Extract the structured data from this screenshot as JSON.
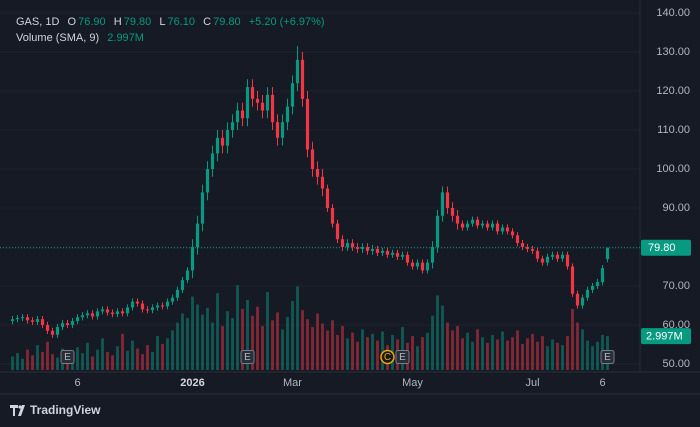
{
  "chart_data": {
    "type": "candlestick",
    "legend": {
      "symbol": "GAS, 1D",
      "o_label": "O",
      "open": "76.90",
      "h_label": "H",
      "high": "79.80",
      "l_label": "L",
      "low": "76.10",
      "c_label": "C",
      "close": "79.80",
      "change": "+5.20 (+6.97%)",
      "volume_label": "Volume (SMA, 9)",
      "volume": "2.997M"
    },
    "categories": [
      null,
      null,
      null,
      null,
      null,
      null,
      null,
      null,
      null,
      null,
      null,
      null,
      null,
      "6",
      null,
      null,
      null,
      null,
      null,
      null,
      null,
      null,
      null,
      null,
      null,
      null,
      null,
      null,
      null,
      null,
      null,
      null,
      null,
      null,
      null,
      null,
      "2026",
      null,
      null,
      null,
      null,
      null,
      null,
      null,
      null,
      null,
      null,
      null,
      null,
      null,
      null,
      null,
      null,
      null,
      null,
      null,
      "Mar",
      null,
      null,
      null,
      null,
      null,
      null,
      null,
      null,
      null,
      null,
      null,
      null,
      null,
      null,
      null,
      null,
      null,
      null,
      null,
      null,
      null,
      null,
      null,
      "May",
      null,
      null,
      null,
      null,
      null,
      null,
      null,
      null,
      null,
      null,
      null,
      null,
      null,
      null,
      null,
      null,
      null,
      null,
      null,
      null,
      null,
      null,
      null,
      "Jul",
      null,
      null,
      null,
      null,
      null,
      null,
      null,
      null,
      null,
      null,
      null,
      null,
      null,
      "6",
      null
    ],
    "events": [
      null,
      null,
      null,
      null,
      null,
      null,
      null,
      null,
      null,
      null,
      null,
      "E",
      null,
      null,
      null,
      null,
      null,
      null,
      null,
      null,
      null,
      null,
      null,
      null,
      null,
      null,
      null,
      null,
      null,
      null,
      null,
      null,
      null,
      null,
      null,
      null,
      null,
      null,
      null,
      null,
      null,
      null,
      null,
      null,
      null,
      null,
      null,
      "E",
      null,
      null,
      null,
      null,
      null,
      null,
      null,
      null,
      null,
      null,
      null,
      null,
      null,
      null,
      null,
      null,
      null,
      null,
      null,
      null,
      null,
      null,
      null,
      null,
      null,
      null,
      null,
      "C",
      null,
      null,
      "E",
      null,
      null,
      null,
      null,
      null,
      null,
      null,
      null,
      null,
      null,
      null,
      null,
      null,
      null,
      null,
      null,
      null,
      null,
      null,
      null,
      null,
      null,
      null,
      null,
      null,
      null,
      null,
      null,
      null,
      null,
      null,
      null,
      null,
      null,
      null,
      null,
      null,
      null,
      null,
      null,
      "E",
      null,
      null,
      null
    ],
    "open": [
      61,
      61.5,
      61.8,
      62,
      61.2,
      60.8,
      61.5,
      60,
      58.5,
      57.5,
      59.5,
      60.5,
      60,
      61,
      62,
      62.5,
      63,
      62.2,
      63.5,
      64,
      63.2,
      62.8,
      63.5,
      63,
      64.5,
      66,
      65.5,
      64,
      63.8,
      64.5,
      65,
      64.8,
      66,
      67,
      69,
      71.5,
      74,
      80,
      86,
      94,
      100,
      104,
      108,
      106,
      110,
      112,
      115,
      113,
      121,
      118,
      117,
      115,
      119,
      112,
      108,
      112,
      116,
      122,
      128,
      118,
      105,
      100,
      98,
      95,
      90,
      86,
      82,
      80,
      81,
      80,
      79.5,
      80,
      79,
      79.5,
      78.5,
      79,
      78,
      78.5,
      77.5,
      78,
      76,
      75,
      76,
      74,
      76,
      80,
      88,
      94,
      90,
      88,
      86,
      85,
      86,
      87,
      85.5,
      86,
      85,
      86,
      84,
      85,
      84,
      83,
      81,
      80,
      79.5,
      79,
      77,
      76,
      77.5,
      78,
      77,
      78,
      75,
      68,
      65,
      67,
      69,
      70,
      71,
      76.9
    ],
    "high": [
      62.3,
      62.6,
      62.8,
      62.8,
      62,
      62.3,
      62.3,
      60.8,
      59.3,
      60.3,
      61.3,
      61.3,
      61.8,
      62.8,
      63.3,
      63.8,
      63.8,
      64.3,
      64.8,
      64.8,
      64,
      64.3,
      64.3,
      65.3,
      66.8,
      66.8,
      66.3,
      64.8,
      65.3,
      65.8,
      65.8,
      66.8,
      67.8,
      69.8,
      72.3,
      74.8,
      82,
      88,
      96,
      102,
      106,
      110,
      110,
      112,
      114,
      117,
      117,
      123,
      123,
      120,
      119,
      121,
      121,
      114,
      114,
      118,
      124,
      131.5,
      130,
      120,
      107,
      102,
      100,
      96,
      91,
      87,
      83,
      82,
      82,
      81,
      81,
      81,
      80.5,
      80.3,
      79.8,
      79.8,
      79.3,
      79.3,
      78.8,
      78.8,
      76.8,
      76.8,
      76.8,
      76.8,
      81.5,
      89.5,
      95.5,
      95.5,
      91.5,
      89.5,
      86.8,
      86.8,
      87.8,
      87.8,
      86.8,
      86.8,
      86.8,
      86.8,
      85.8,
      85.8,
      84.8,
      83.8,
      81.8,
      80.8,
      80.3,
      79.8,
      77.8,
      78.3,
      78.8,
      78.8,
      78.8,
      78.8,
      75.8,
      68.8,
      67.8,
      69.8,
      70.8,
      71.8,
      75.4,
      79.8
    ],
    "low": [
      60.2,
      60.7,
      61,
      60.4,
      60,
      60,
      59.2,
      57.7,
      56.7,
      56.7,
      58.7,
      59.2,
      59.2,
      60.2,
      61.2,
      61.7,
      61.4,
      61.4,
      62.7,
      62.4,
      62,
      62,
      62.2,
      62.2,
      63.7,
      64.7,
      63.2,
      63,
      63,
      63.7,
      64,
      64,
      65.2,
      66.2,
      68.2,
      70.7,
      72,
      78,
      84,
      92,
      98,
      102,
      104,
      104,
      108,
      110,
      111,
      111,
      116,
      115,
      113,
      113,
      110,
      106,
      106,
      110,
      114,
      120,
      116,
      103,
      98,
      96,
      93,
      89,
      85,
      81,
      79,
      79,
      79,
      78.5,
      78.5,
      78,
      78,
      77.7,
      77.7,
      77.2,
      77.2,
      76.7,
      76.7,
      75.2,
      74.2,
      74.2,
      73.2,
      73.2,
      74.5,
      78.5,
      86.5,
      88.5,
      86.5,
      84.5,
      84.2,
      84.2,
      85.2,
      84.7,
      84.7,
      84.2,
      84.2,
      83.2,
      83.2,
      83.2,
      82.2,
      80.2,
      79.2,
      78.7,
      78.2,
      76.2,
      75.2,
      75.2,
      76.7,
      76.2,
      76.2,
      74.2,
      67.2,
      64.2,
      64.2,
      66.2,
      68.2,
      69.2,
      70.2,
      76.1
    ],
    "close": [
      61.5,
      61.8,
      62,
      61.2,
      60.8,
      61.5,
      60,
      58.5,
      57.5,
      59.5,
      60.5,
      60,
      61,
      62,
      62.5,
      63,
      62.2,
      63.5,
      64,
      63.2,
      62.8,
      63.5,
      63,
      64.5,
      66,
      65.5,
      64,
      63.8,
      64.5,
      65,
      64.8,
      66,
      67,
      69,
      71.5,
      74,
      80,
      86,
      94,
      100,
      104,
      108,
      106,
      110,
      112,
      115,
      113,
      121,
      118,
      117,
      115,
      119,
      112,
      108,
      112,
      116,
      122,
      128,
      118,
      105,
      100,
      98,
      95,
      90,
      86,
      82,
      80,
      81,
      80,
      79.5,
      80,
      79,
      79.5,
      78.5,
      79,
      78,
      78.5,
      77.5,
      78,
      76,
      75,
      76,
      74,
      76,
      80,
      88,
      94,
      90,
      88,
      86,
      85,
      86,
      87,
      85.5,
      86,
      85,
      86,
      84,
      85,
      84,
      83,
      81,
      80,
      79.5,
      79,
      77,
      76,
      77.5,
      78,
      77,
      78,
      75,
      68,
      65,
      67,
      69,
      70,
      71,
      74.6,
      79.8
    ],
    "volume": [
      1.2,
      1.5,
      1,
      1.8,
      1.3,
      2.2,
      1.6,
      2.5,
      1.4,
      1.1,
      1.9,
      1.3,
      1.7,
      2,
      1.5,
      2.4,
      1.2,
      1.8,
      2.8,
      1.6,
      1.3,
      2.1,
      3.2,
      1.7,
      2.6,
      1.9,
      1.4,
      2.2,
      1.6,
      3,
      2.3,
      2.8,
      3.5,
      4.2,
      5,
      4.6,
      6.5,
      5.8,
      4.9,
      5.5,
      4.2,
      6.8,
      3.9,
      5.2,
      4.6,
      7.5,
      5.4,
      6.2,
      4.8,
      5.6,
      3.9,
      6.9,
      4.4,
      5.1,
      3.6,
      4.7,
      6.1,
      7.4,
      5.3,
      4.5,
      3.8,
      5,
      4.1,
      3.5,
      4.4,
      3.1,
      3.9,
      2.8,
      3.3,
      2.5,
      3.6,
      2.9,
      3.2,
      2.6,
      3.4,
      2.2,
      3.1,
      2.7,
      3.8,
      2.4,
      3,
      2.1,
      2.9,
      3.3,
      4.8,
      6.6,
      5.7,
      4.2,
      3.5,
      3.9,
      2.8,
      3.3,
      2.5,
      3.6,
      2.9,
      2.4,
      3.1,
      2.7,
      3.4,
      2.6,
      2.9,
      3.5,
      2.3,
      2.8,
      3.2,
      2.5,
      3,
      2.1,
      2.7,
      2.4,
      2.2,
      3,
      5.4,
      4.2,
      3.6,
      2.6,
      2.1,
      2.5,
      3.1,
      2.997
    ],
    "up_color": "#089981",
    "down_color": "#f23645",
    "ylim": [
      50,
      140
    ],
    "yticks": [
      {
        "value": 50,
        "label": "50.00"
      },
      {
        "value": 60,
        "label": "60.00"
      },
      {
        "value": 70,
        "label": "70.00"
      },
      {
        "value": 80,
        "label": "80.00"
      },
      {
        "value": 90,
        "label": "90.00"
      },
      {
        "value": 100,
        "label": "100.00"
      },
      {
        "value": 110,
        "label": "110.00"
      },
      {
        "value": 120,
        "label": "120.00"
      },
      {
        "value": 130,
        "label": "130.00"
      },
      {
        "value": 140,
        "label": "140.00"
      }
    ],
    "grid": true,
    "brand": "TradingView"
  }
}
